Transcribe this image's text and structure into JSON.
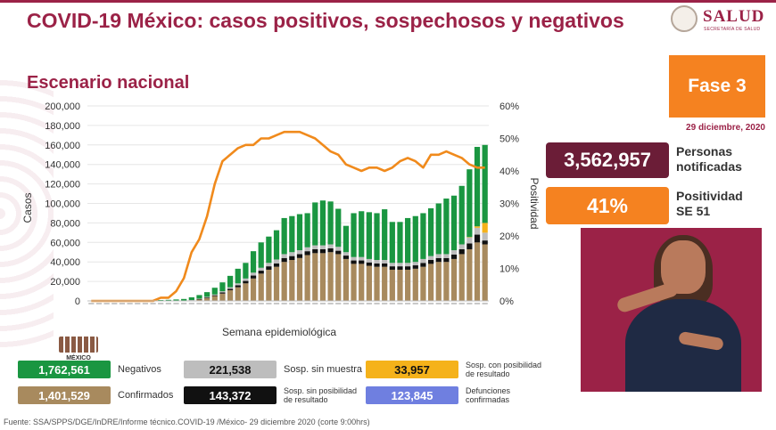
{
  "header": {
    "title": "COVID-19 México: casos positivos, sospechosos y negativos",
    "logo_text": "SALUD",
    "logo_subtext": "SECRETARÍA DE SALUD"
  },
  "subtitle": "Escenario nacional",
  "fase": "Fase 3",
  "date": "29 diciembre, 2020",
  "stats": {
    "personas_value": "3,562,957",
    "personas_label_1": "Personas",
    "personas_label_2": "notificadas",
    "positividad_value": "41%",
    "positividad_label_1": "Positividad",
    "positividad_label_2": "SE 51"
  },
  "legend": [
    {
      "value": "1,762,561",
      "label": "Negativos",
      "color": "#1a9641",
      "text_color": "#ffffff"
    },
    {
      "value": "221,538",
      "label": "Sosp. sin muestra",
      "color": "#bdbdbd",
      "text_color": "#111111"
    },
    {
      "value": "33,957",
      "label_1": "Sosp. con posibilidad",
      "label_2": "de resultado",
      "color": "#f5b21a",
      "text_color": "#111111"
    },
    {
      "value": "1,401,529",
      "label": "Confirmados",
      "color": "#a88a5e",
      "text_color": "#ffffff"
    },
    {
      "value": "143,372",
      "label_1": "Sosp. sin posibilidad",
      "label_2": "de resultado",
      "color": "#111111",
      "text_color": "#ffffff"
    },
    {
      "value": "123,845",
      "label_1": "Defunciones",
      "label_2": "confirmadas",
      "color": "#6f7fe0",
      "text_color": "#ffffff"
    }
  ],
  "mexico_logo_text": "MÉXICO",
  "footer": "Fuente: SSA/SPPS/DGE/InDRE/Informe técnico.COVID-19 /México- 29 diciembre 2020 (corte 9:00hrs)",
  "chart_data": {
    "type": "bar",
    "stacked": true,
    "xlabel": "Semana epidemiológica",
    "ylabel": "Casos",
    "y2label": "Positividad",
    "ylim": [
      0,
      200000
    ],
    "y2lim": [
      0,
      60
    ],
    "yticks": [
      "0",
      "20,000",
      "40,000",
      "60,000",
      "80,000",
      "100,000",
      "120,000",
      "140,000",
      "160,000",
      "180,000",
      "200,000"
    ],
    "y2ticks": [
      "0%",
      "10%",
      "20%",
      "30%",
      "40%",
      "50%",
      "60%"
    ],
    "weeks": 52,
    "series": [
      {
        "name": "Confirmados",
        "color": "#a88a5e",
        "values": [
          0,
          0,
          0,
          0,
          0,
          0,
          0,
          0,
          0,
          0,
          0,
          0,
          0,
          500,
          1500,
          3000,
          5000,
          7500,
          11000,
          14000,
          18000,
          23000,
          28000,
          32000,
          35000,
          40000,
          42000,
          44000,
          47000,
          49000,
          49000,
          50000,
          48000,
          43000,
          38000,
          38000,
          36000,
          35000,
          35000,
          32000,
          32000,
          32000,
          33000,
          35000,
          38000,
          40000,
          40000,
          43000,
          48000,
          53000,
          60000,
          58000
        ]
      },
      {
        "name": "Sosp. sin posibilidad de resultado",
        "color": "#111111",
        "values": [
          0,
          0,
          0,
          0,
          0,
          0,
          0,
          0,
          0,
          0,
          0,
          0,
          0,
          200,
          400,
          600,
          800,
          1200,
          1500,
          2000,
          2500,
          3000,
          3000,
          3500,
          3500,
          4000,
          4000,
          4000,
          4000,
          4000,
          4000,
          4000,
          3500,
          3500,
          3500,
          3500,
          3500,
          3500,
          3500,
          3500,
          3500,
          3500,
          3500,
          4000,
          4000,
          4000,
          4000,
          4500,
          5000,
          6000,
          8000,
          4000
        ]
      },
      {
        "name": "Sosp. sin muestra",
        "color": "#bdbdbd",
        "values": [
          0,
          0,
          0,
          0,
          0,
          0,
          0,
          0,
          0,
          0,
          0,
          0,
          0,
          200,
          400,
          600,
          800,
          1200,
          1500,
          2000,
          2500,
          3000,
          3000,
          3500,
          4000,
          4000,
          4000,
          4000,
          4000,
          4000,
          4000,
          4000,
          4000,
          3500,
          3500,
          3500,
          3500,
          3500,
          3500,
          3500,
          3500,
          3500,
          3500,
          4000,
          4000,
          4000,
          4000,
          4500,
          5000,
          6000,
          7000,
          8000
        ]
      },
      {
        "name": "Sosp. con posibilidad de resultado",
        "color": "#f5b21a",
        "values": [
          0,
          0,
          0,
          0,
          0,
          0,
          0,
          0,
          0,
          0,
          0,
          0,
          0,
          0,
          0,
          0,
          0,
          0,
          0,
          0,
          0,
          0,
          0,
          0,
          0,
          0,
          0,
          0,
          0,
          0,
          0,
          0,
          0,
          0,
          0,
          0,
          0,
          0,
          0,
          0,
          0,
          0,
          0,
          0,
          0,
          0,
          0,
          0,
          0,
          500,
          1500,
          10000
        ]
      },
      {
        "name": "Negativos",
        "color": "#1a9641",
        "values": [
          100,
          100,
          100,
          200,
          300,
          300,
          400,
          500,
          700,
          900,
          1100,
          1500,
          2000,
          2800,
          3700,
          4800,
          6900,
          9100,
          11700,
          15000,
          16000,
          22000,
          26000,
          27000,
          30000,
          37000,
          37000,
          37000,
          35000,
          44000,
          46000,
          44000,
          39000,
          27000,
          45000,
          47000,
          48000,
          48000,
          52000,
          42000,
          42000,
          46000,
          47000,
          47000,
          49000,
          52000,
          57000,
          56000,
          60000,
          69500,
          81500,
          80000
        ]
      }
    ],
    "positividad": [
      0,
      0,
      0,
      0,
      0,
      0,
      0,
      0,
      0,
      1,
      1,
      3,
      7,
      15,
      19,
      26,
      36,
      43,
      45,
      47,
      48,
      48,
      50,
      50,
      51,
      52,
      52,
      52,
      51,
      50,
      48,
      46,
      45,
      42,
      41,
      40,
      41,
      41,
      40,
      41,
      43,
      44,
      43,
      41,
      45,
      45,
      46,
      45,
      44,
      42,
      41,
      41
    ]
  }
}
